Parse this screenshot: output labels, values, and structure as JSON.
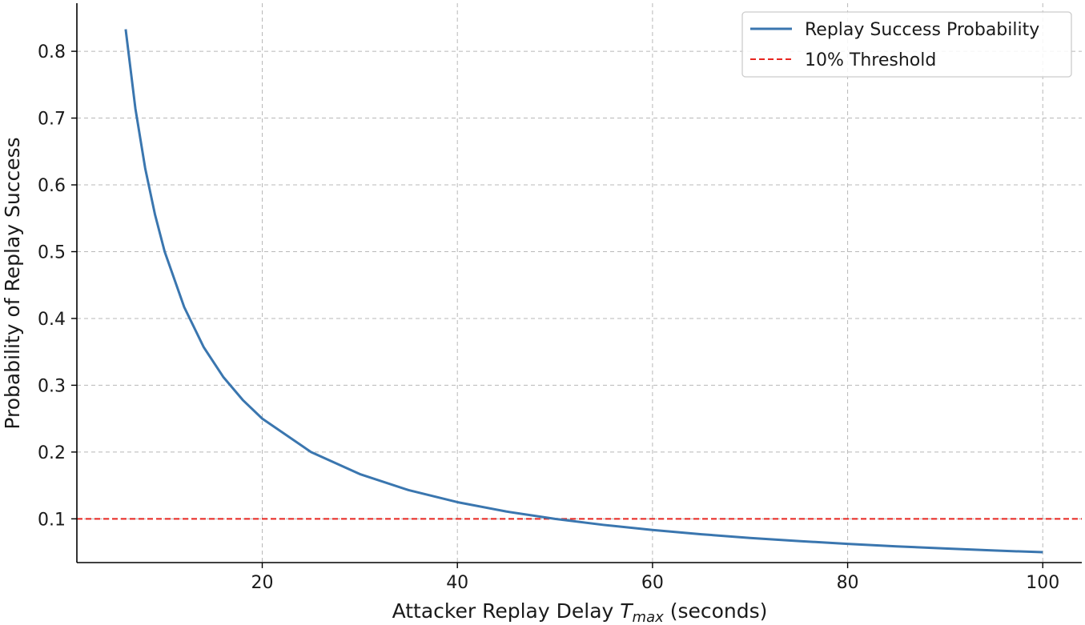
{
  "chart_data": {
    "type": "line",
    "xlabel_main": "Attacker Replay Delay ",
    "xlabel_var": "T",
    "xlabel_sub": "max",
    "xlabel_unit": " (seconds)",
    "ylabel": "Probability of Replay Success",
    "xlim": [
      1,
      104
    ],
    "ylim": [
      0.0345,
      0.872
    ],
    "xticks": [
      20,
      40,
      60,
      80,
      100
    ],
    "xtick_labels": [
      "20",
      "40",
      "60",
      "80",
      "100"
    ],
    "yticks": [
      0.1,
      0.2,
      0.3,
      0.4,
      0.5,
      0.6,
      0.7,
      0.8
    ],
    "ytick_labels": [
      "0.1",
      "0.2",
      "0.3",
      "0.4",
      "0.5",
      "0.6",
      "0.7",
      "0.8"
    ],
    "grid": true,
    "legend_position": "top-right",
    "series": [
      {
        "name": "Replay Success Probability",
        "color": "#3a76af",
        "style": "solid",
        "x": [
          6,
          7,
          8,
          9,
          10,
          12,
          14,
          16,
          18,
          20,
          25,
          30,
          35,
          40,
          45,
          50,
          55,
          60,
          65,
          70,
          75,
          80,
          85,
          90,
          95,
          100
        ],
        "y": [
          0.833,
          0.714,
          0.625,
          0.556,
          0.5,
          0.417,
          0.357,
          0.3125,
          0.278,
          0.25,
          0.2,
          0.167,
          0.143,
          0.125,
          0.111,
          0.1,
          0.0909,
          0.0833,
          0.0769,
          0.0714,
          0.0667,
          0.0625,
          0.0588,
          0.0556,
          0.0526,
          0.05
        ]
      },
      {
        "name": "10% Threshold",
        "color": "#e8251f",
        "style": "dashed",
        "y_constant": 0.1
      }
    ]
  }
}
